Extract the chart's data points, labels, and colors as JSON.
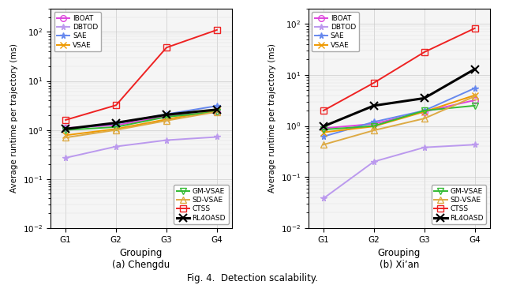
{
  "x": [
    1,
    2,
    3,
    4
  ],
  "xtick_labels": [
    "G1",
    "G2",
    "G3",
    "G4"
  ],
  "xlabel": "Grouping",
  "ylabel": "Average runtime per trajectory (ms)",
  "chengdu": {
    "IBOAT": [
      1.1,
      1.25,
      1.9,
      2.3
    ],
    "DBTOD": [
      0.27,
      0.46,
      0.62,
      0.72
    ],
    "SAE": [
      1.05,
      1.35,
      2.1,
      3.1
    ],
    "VSAE": [
      0.78,
      1.05,
      1.65,
      2.5
    ],
    "GM-VSAE": [
      1.0,
      1.15,
      1.85,
      2.35
    ],
    "SD-VSAE": [
      0.7,
      1.0,
      1.55,
      2.35
    ],
    "CTSS": [
      1.6,
      3.2,
      48.0,
      110.0
    ],
    "RL4OASD": [
      1.05,
      1.4,
      2.05,
      2.6
    ]
  },
  "xian": {
    "IBOAT": [
      0.9,
      1.1,
      1.9,
      3.2
    ],
    "DBTOD": [
      0.038,
      0.2,
      0.38,
      0.43
    ],
    "SAE": [
      0.62,
      1.2,
      2.0,
      5.5
    ],
    "VSAE": [
      0.75,
      0.98,
      1.9,
      4.0
    ],
    "GM-VSAE": [
      0.85,
      1.0,
      2.0,
      2.5
    ],
    "SD-VSAE": [
      0.43,
      0.82,
      1.4,
      3.8
    ],
    "CTSS": [
      2.0,
      7.0,
      28.0,
      82.0
    ],
    "RL4OASD": [
      0.98,
      2.5,
      3.5,
      13.0
    ]
  },
  "colors": {
    "IBOAT": "#dd44dd",
    "DBTOD": "#bb99ee",
    "SAE": "#6688ee",
    "VSAE": "#ee9900",
    "GM-VSAE": "#33bb33",
    "SD-VSAE": "#ddaa44",
    "CTSS": "#ee2222",
    "RL4OASD": "#000000"
  },
  "markers": {
    "IBOAT": "o",
    "DBTOD": "*",
    "SAE": "*",
    "VSAE": "x",
    "GM-VSAE": "v",
    "SD-VSAE": "^",
    "CTSS": "s",
    "RL4OASD": "x"
  },
  "top_legend": [
    "IBOAT",
    "DBTOD",
    "SAE",
    "VSAE"
  ],
  "bottom_legend": [
    "GM-VSAE",
    "SD-VSAE",
    "CTSS",
    "RL4OASD"
  ],
  "title_a": "(a) Chengdu",
  "title_b": "(b) Xi’an",
  "fig_caption": "Fig. 4.  Detection scalability.",
  "ylim_a": [
    0.01,
    300
  ],
  "ylim_b": [
    0.01,
    200
  ]
}
